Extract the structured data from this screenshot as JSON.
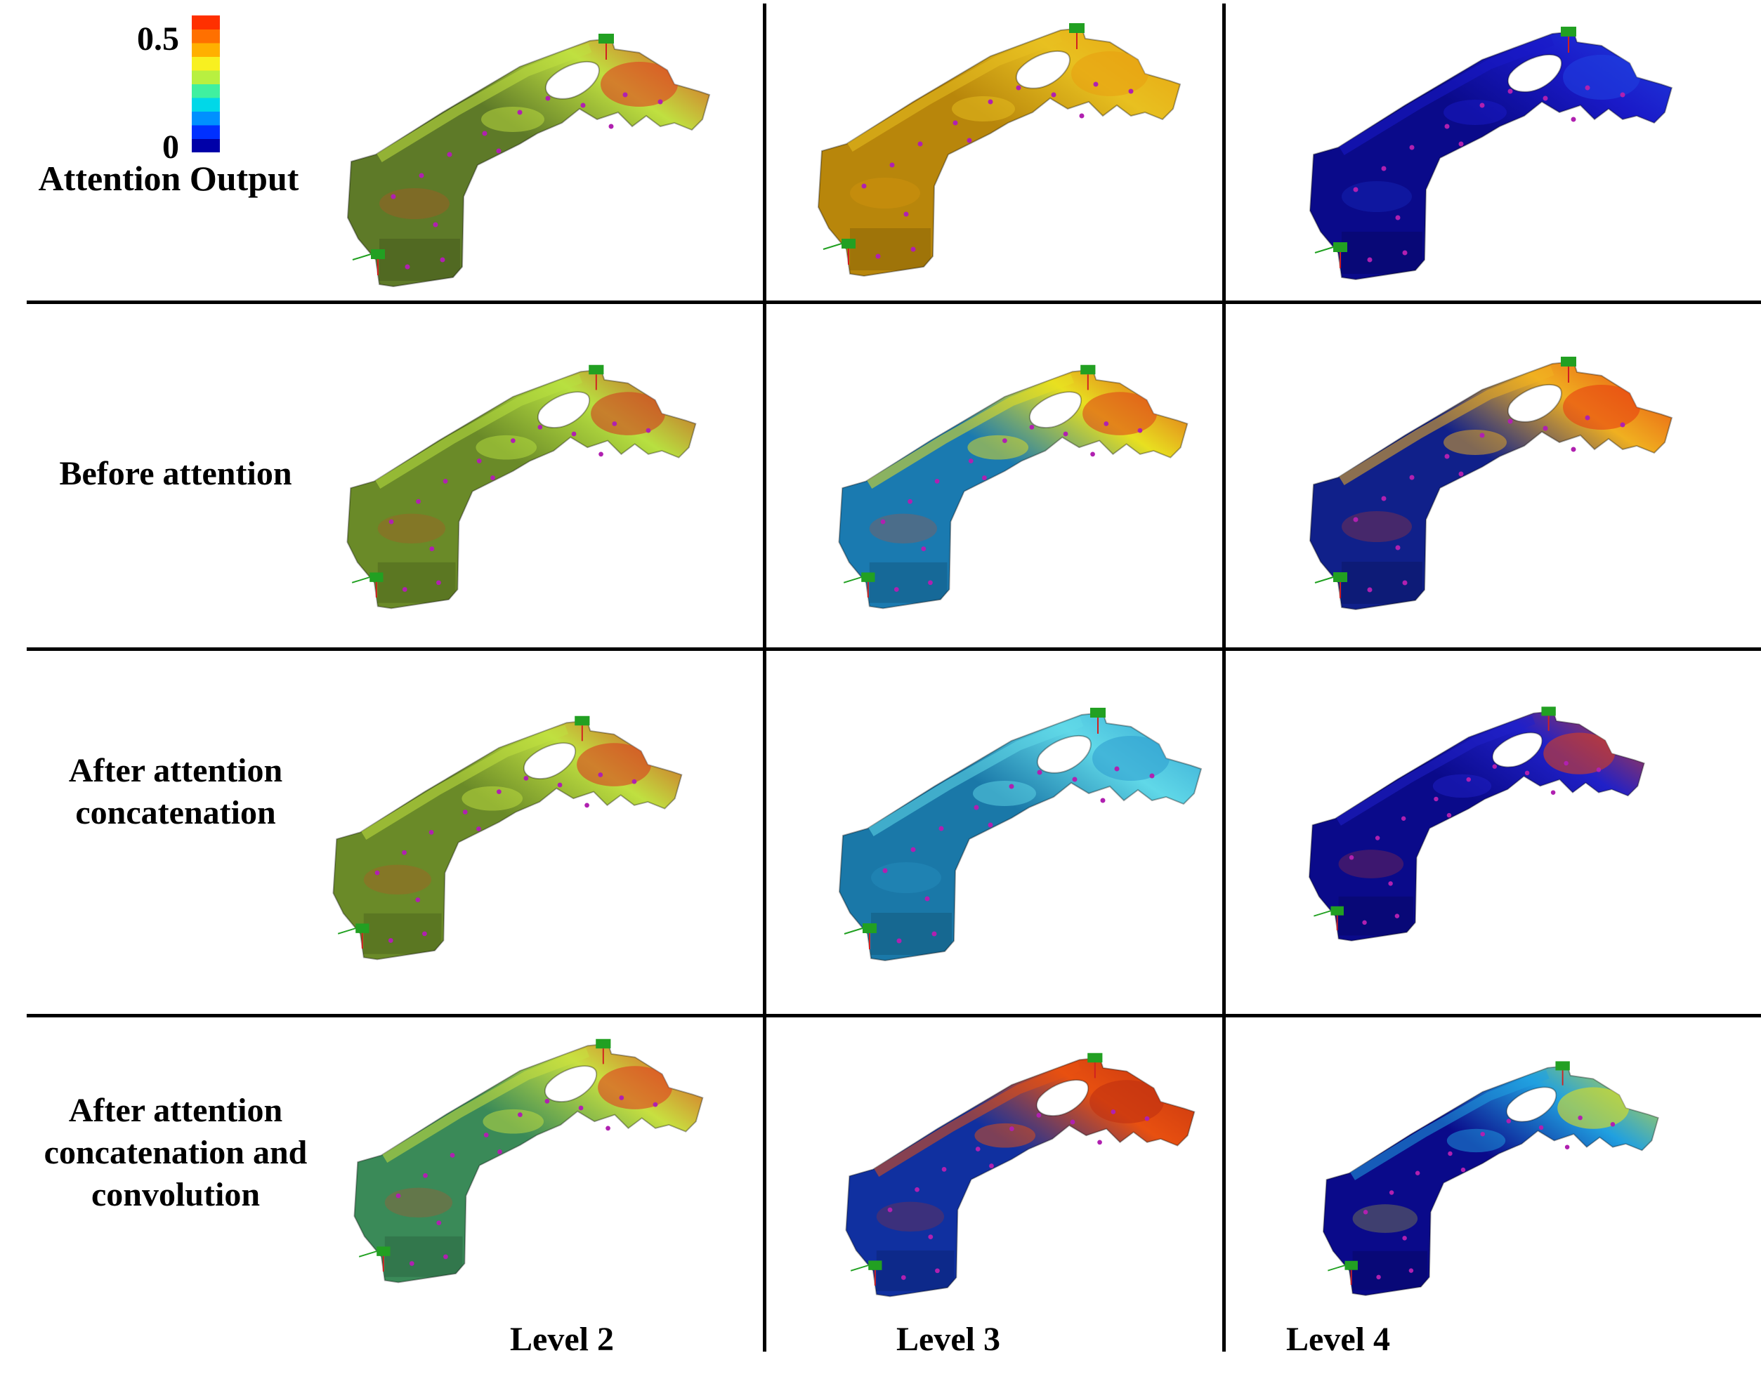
{
  "legend": {
    "title": "Attention Output",
    "max_label": "0.5",
    "min_label": "0",
    "colors": [
      "#0000a8",
      "#0030ff",
      "#0090ff",
      "#00d8e8",
      "#40f0a0",
      "#b8f040",
      "#f8f020",
      "#ffb000",
      "#ff7000",
      "#ff3000"
    ]
  },
  "row_labels": [
    "Before attention",
    "After attention concatenation",
    "After attention concatenation and convolution"
  ],
  "row_label_lines": {
    "r2": [
      "After attention",
      "concatenation"
    ],
    "r3": [
      "After attention",
      "concatenation and",
      "convolution"
    ]
  },
  "column_labels": [
    "Level 2",
    "Level 3",
    "Level 4"
  ],
  "panels": [
    {
      "row": "Attention Output",
      "column": "Level 2",
      "base": "#5e7a28",
      "accent": "#c0e040",
      "hot": "#e04020"
    },
    {
      "row": "Attention Output",
      "column": "Level 3",
      "base": "#b8860b",
      "accent": "#e8c020",
      "hot": "#e8a010"
    },
    {
      "row": "Attention Output",
      "column": "Level 4",
      "base": "#0a0a8a",
      "accent": "#1a1ac8",
      "hot": "#2040e0"
    },
    {
      "row": "Before attention",
      "column": "Level 2",
      "base": "#6a8a28",
      "accent": "#b8e040",
      "hot": "#d04020"
    },
    {
      "row": "Before attention",
      "column": "Level 3",
      "base": "#1a7ab0",
      "accent": "#e8e020",
      "hot": "#e04818"
    },
    {
      "row": "Before attention",
      "column": "Level 4",
      "base": "#10208a",
      "accent": "#f0b020",
      "hot": "#e84010"
    },
    {
      "row": "After attention concatenation",
      "column": "Level 2",
      "base": "#6a8a28",
      "accent": "#c0e040",
      "hot": "#d84020"
    },
    {
      "row": "After attention concatenation",
      "column": "Level 3",
      "base": "#1a78a8",
      "accent": "#60d8e8",
      "hot": "#30a0d0"
    },
    {
      "row": "After attention concatenation",
      "column": "Level 4",
      "base": "#0a0a8a",
      "accent": "#2020c8",
      "hot": "#d84020"
    },
    {
      "row": "After attention concatenation and convolution",
      "column": "Level 2",
      "base": "#3a8a58",
      "accent": "#c8e040",
      "hot": "#e04020"
    },
    {
      "row": "After attention concatenation and convolution",
      "column": "Level 3",
      "base": "#1030a0",
      "accent": "#e85010",
      "hot": "#c03010"
    },
    {
      "row": "After attention concatenation and convolution",
      "column": "Level 4",
      "base": "#0a0a8a",
      "accent": "#20a0e0",
      "hot": "#e0e020"
    }
  ]
}
